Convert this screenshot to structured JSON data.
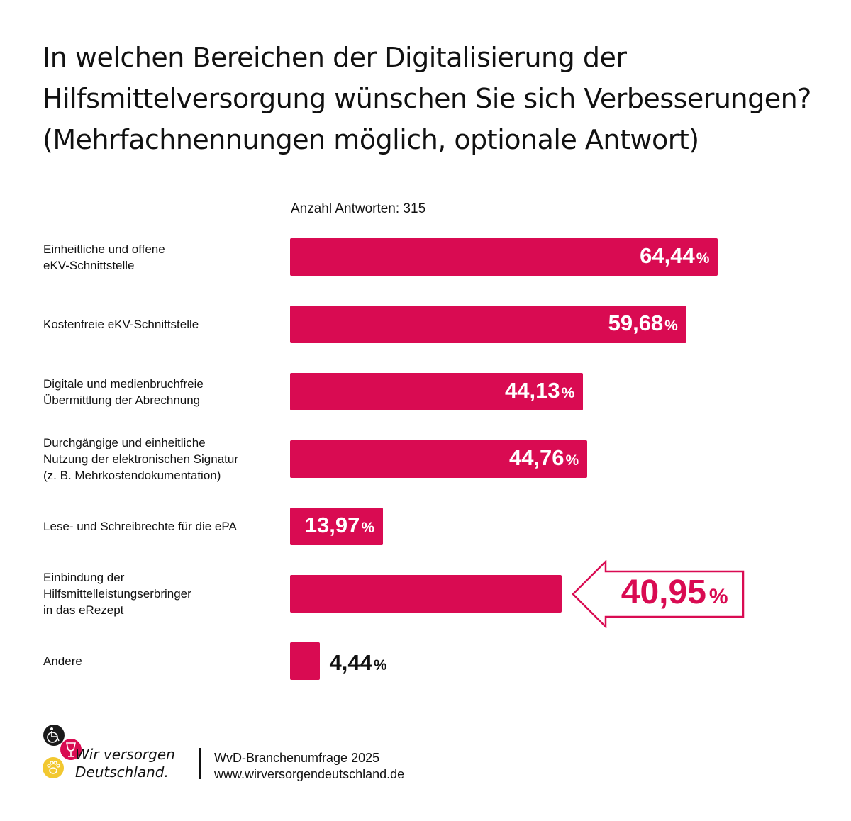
{
  "title_lines": [
    "In welchen Bereichen der Digitalisierung der",
    "Hilfsmittelversorgung wünschen Sie sich Verbesserungen?",
    "(Mehrfachnennungen möglich, optionale Antwort)"
  ],
  "response_count_label": "Anzahl Antworten: 315",
  "colors": {
    "accent": "#d90b52",
    "text": "#111111",
    "label_on_bar": "#ffffff"
  },
  "chart_data": {
    "type": "bar",
    "orientation": "horizontal",
    "title": "In welchen Bereichen der Digitalisierung der Hilfsmittelversorgung wünschen Sie sich Verbesserungen? (Mehrfachnennungen möglich, optionale Antwort)",
    "unit": "%",
    "xlim": [
      0,
      100
    ],
    "grid": false,
    "legend": "none",
    "categories": [
      [
        "Einheitliche und offene",
        "eKV-Schnittstelle"
      ],
      [
        "Kostenfreie eKV-Schnittstelle"
      ],
      [
        "Digitale und medienbruchfreie",
        "Übermittlung der Abrechnung"
      ],
      [
        "Durchgängige und einheitliche",
        "Nutzung der elektronischen Signatur",
        "(z. B. Mehrkostendokumentation)"
      ],
      [
        "Lese- und Schreibrechte für die ePA"
      ],
      [
        "Einbindung der",
        "Hilfsmittelleistungserbringer",
        "in das eRezept"
      ],
      [
        "Andere"
      ]
    ],
    "values": [
      64.44,
      59.68,
      44.13,
      44.76,
      13.97,
      40.95,
      4.44
    ],
    "value_labels": [
      "64,44",
      "59,68",
      "44,13",
      "44,76",
      "13,97",
      "40,95",
      "4,44"
    ],
    "percent_sign": "%",
    "label_position": [
      "inside",
      "inside",
      "inside",
      "inside",
      "inside",
      "callout",
      "outside"
    ],
    "highlight_index": 5
  },
  "footer": {
    "logo_text_lines": [
      "Wir versorgen",
      "Deutschland."
    ],
    "source_lines": [
      "WvD-Branchenumfrage 2025",
      "www.wirversorgendeutschland.de"
    ],
    "logo_icons": [
      "wheelchair-icon",
      "wine-glass-icon",
      "paw-icon"
    ]
  }
}
